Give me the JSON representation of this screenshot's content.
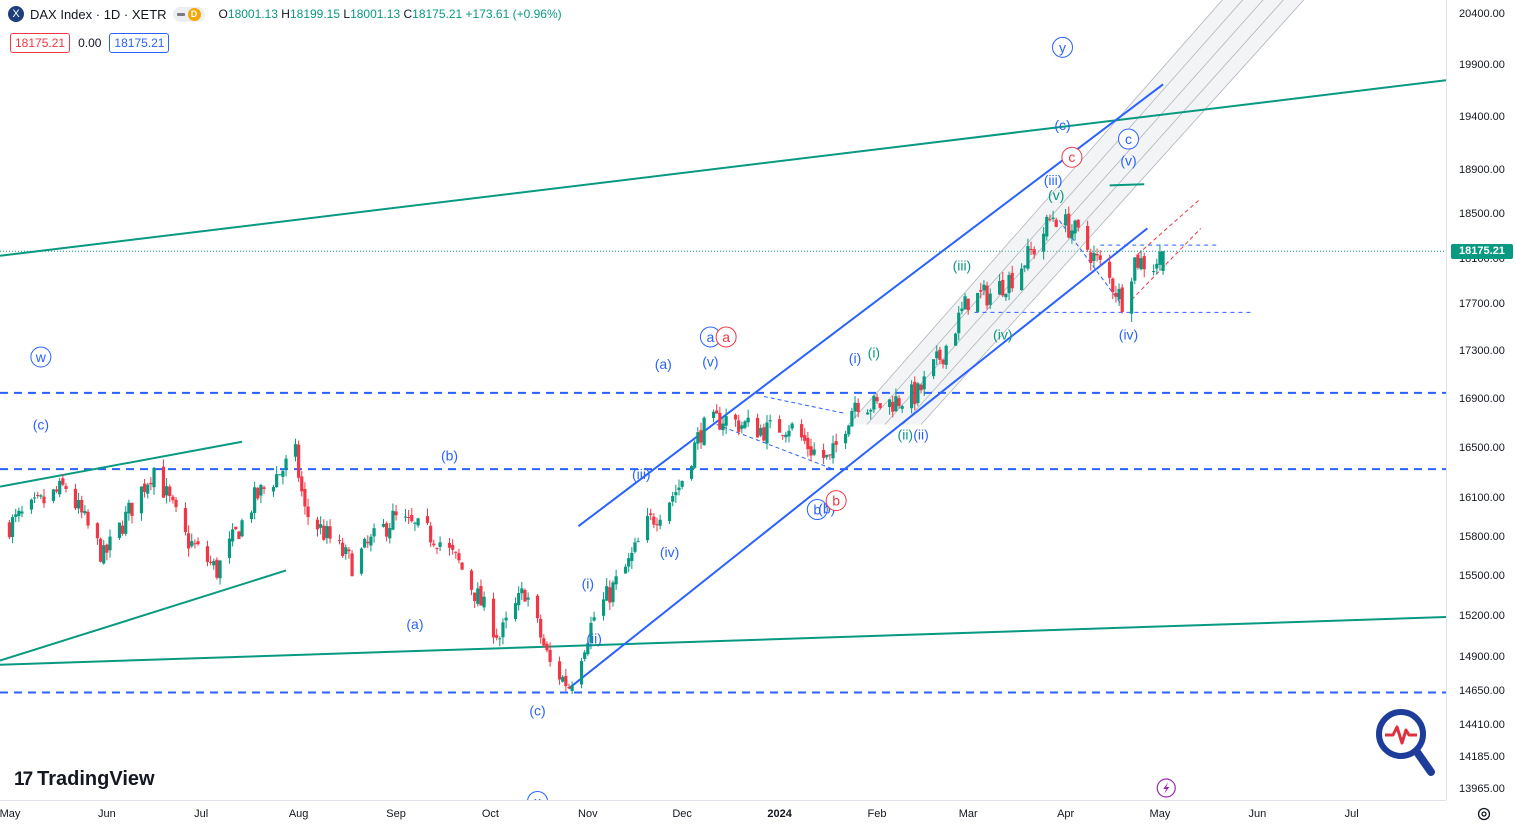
{
  "header": {
    "symbol_badge": "X",
    "title": "DAX Index · 1D · XETR",
    "interval_badge": "D",
    "ohlc": {
      "o_label": "O",
      "o": "18001.13",
      "h_label": "H",
      "h": "18199.15",
      "l_label": "L",
      "l": "18001.13",
      "c_label": "C",
      "c": "18175.21",
      "change": "+173.61 (+0.96%)"
    },
    "sell_price": "18175.21",
    "spread": "0.00",
    "buy_price": "18175.21"
  },
  "brand": {
    "logo_text": "TradingView",
    "logo_mark": "17"
  },
  "colors": {
    "up": "#089981",
    "down": "#f23645",
    "channel_blue": "#2962ff",
    "trend_green": "#089981",
    "label_blue": "#2962ff",
    "label_red": "#f23645"
  },
  "chart_data": {
    "type": "candlestick",
    "symbol": "DAX Index",
    "interval": "1D",
    "exchange": "XETR",
    "last_price": 18175.21,
    "last_price_label": "18175.21",
    "y_axis": {
      "scale": "log",
      "range": [
        13900,
        20550
      ],
      "ticks": [
        20400,
        19900,
        19400,
        18900,
        18500,
        18100,
        17700,
        17300,
        16900,
        16500,
        16100,
        15800,
        15500,
        15200,
        14900,
        14650,
        14410,
        14185,
        13965
      ],
      "tick_labels": [
        "20400.00",
        "19900.00",
        "19400.00",
        "18900.00",
        "18500.00",
        "18100.00",
        "17700.00",
        "17300.00",
        "16900.00",
        "16500.00",
        "16100.00",
        "15800.00",
        "15500.00",
        "15200.00",
        "14900.00",
        "14650.00",
        "14410.00",
        "14185.00",
        "13965.00"
      ]
    },
    "x_axis": {
      "type": "date",
      "range": [
        "2023-04-28",
        "2024-07-31"
      ],
      "ticks": [
        {
          "date": "2023-05-01",
          "label": "May",
          "bold": false
        },
        {
          "date": "2023-06-01",
          "label": "Jun",
          "bold": false
        },
        {
          "date": "2023-07-01",
          "label": "Jul",
          "bold": false
        },
        {
          "date": "2023-08-01",
          "label": "Aug",
          "bold": false
        },
        {
          "date": "2023-09-01",
          "label": "Sep",
          "bold": false
        },
        {
          "date": "2023-10-01",
          "label": "Oct",
          "bold": false
        },
        {
          "date": "2023-11-01",
          "label": "Nov",
          "bold": false
        },
        {
          "date": "2023-12-01",
          "label": "Dec",
          "bold": false
        },
        {
          "date": "2024-01-01",
          "label": "2024",
          "bold": true
        },
        {
          "date": "2024-02-01",
          "label": "Feb",
          "bold": false
        },
        {
          "date": "2024-03-01",
          "label": "Mar",
          "bold": false
        },
        {
          "date": "2024-04-01",
          "label": "Apr",
          "bold": false
        },
        {
          "date": "2024-05-01",
          "label": "May",
          "bold": false
        },
        {
          "date": "2024-06-01",
          "label": "Jun",
          "bold": false
        },
        {
          "date": "2024-07-01",
          "label": "Jul",
          "bold": false
        }
      ]
    },
    "price_path": [
      {
        "date": "2023-05-01",
        "close": 15900
      },
      {
        "date": "2023-05-19",
        "close": 16200
      },
      {
        "date": "2023-05-31",
        "close": 15650
      },
      {
        "date": "2023-06-16",
        "close": 16350
      },
      {
        "date": "2023-06-26",
        "close": 15800
      },
      {
        "date": "2023-07-06",
        "close": 15550
      },
      {
        "date": "2023-07-18",
        "close": 16100
      },
      {
        "date": "2023-07-31",
        "close": 16450
      },
      {
        "date": "2023-08-03",
        "close": 16000
      },
      {
        "date": "2023-08-18",
        "close": 15600
      },
      {
        "date": "2023-08-31",
        "close": 15950
      },
      {
        "date": "2023-09-14",
        "close": 15800
      },
      {
        "date": "2023-09-21",
        "close": 15600
      },
      {
        "date": "2023-10-04",
        "close": 15050
      },
      {
        "date": "2023-10-12",
        "close": 15400
      },
      {
        "date": "2023-10-20",
        "close": 14850
      },
      {
        "date": "2023-10-26",
        "close": 14700
      },
      {
        "date": "2023-11-03",
        "close": 15200
      },
      {
        "date": "2023-11-14",
        "close": 15600
      },
      {
        "date": "2023-11-20",
        "close": 15900
      },
      {
        "date": "2023-11-30",
        "close": 16200
      },
      {
        "date": "2023-12-07",
        "close": 16650
      },
      {
        "date": "2023-12-14",
        "close": 16750
      },
      {
        "date": "2023-12-20",
        "close": 16700
      },
      {
        "date": "2023-12-28",
        "close": 16650
      },
      {
        "date": "2024-01-04",
        "close": 16700
      },
      {
        "date": "2024-01-11",
        "close": 16500
      },
      {
        "date": "2024-01-17",
        "close": 16400
      },
      {
        "date": "2024-01-25",
        "close": 16900
      },
      {
        "date": "2024-02-01",
        "close": 16850
      },
      {
        "date": "2024-02-14",
        "close": 16950
      },
      {
        "date": "2024-02-22",
        "close": 17300
      },
      {
        "date": "2024-03-01",
        "close": 17750
      },
      {
        "date": "2024-03-08",
        "close": 17800
      },
      {
        "date": "2024-03-15",
        "close": 17950
      },
      {
        "date": "2024-03-22",
        "close": 18200
      },
      {
        "date": "2024-03-28",
        "close": 18500
      },
      {
        "date": "2024-04-04",
        "close": 18350
      },
      {
        "date": "2024-04-12",
        "close": 18050
      },
      {
        "date": "2024-04-19",
        "close": 17750
      },
      {
        "date": "2024-04-23",
        "close": 18100
      },
      {
        "date": "2024-04-29",
        "close": 18050
      },
      {
        "date": "2024-05-02",
        "close": 18175
      }
    ],
    "horizontal_levels": [
      {
        "price": 16340,
        "style": "dashed",
        "color": "#2962ff"
      },
      {
        "price": 16960,
        "style": "dashed",
        "color": "#2962ff"
      },
      {
        "price": 14650,
        "style": "dashed",
        "color": "#2962ff"
      },
      {
        "price": 17640,
        "style": "dashed",
        "color": "#2962ff",
        "from": "2024-03-03",
        "to": "2024-05-31"
      },
      {
        "price": 18230,
        "style": "dashed",
        "color": "#2962ff",
        "from": "2024-04-12",
        "to": "2024-05-20"
      }
    ],
    "trend_lines": [
      {
        "color": "#089981",
        "from": {
          "date": "2023-04-28",
          "price": 18135
        },
        "to": {
          "date": "2024-07-31",
          "price": 19760
        }
      },
      {
        "color": "#089981",
        "from": {
          "date": "2023-04-28",
          "price": 14850
        },
        "to": {
          "date": "2024-07-31",
          "price": 15200
        }
      },
      {
        "color": "#089981",
        "from": {
          "date": "2023-04-28",
          "price": 16200
        },
        "to": {
          "date": "2023-07-14",
          "price": 16560
        }
      },
      {
        "color": "#089981",
        "from": {
          "date": "2023-04-28",
          "price": 14880
        },
        "to": {
          "date": "2023-07-28",
          "price": 15550
        }
      },
      {
        "color": "#089981",
        "from": {
          "date": "2024-04-15",
          "price": 18770
        },
        "to": {
          "date": "2024-04-26",
          "price": 18780
        }
      },
      {
        "color": "#2962ff",
        "from": {
          "date": "2023-10-29",
          "price": 15890
        },
        "to": {
          "date": "2024-05-02",
          "price": 19720
        }
      },
      {
        "color": "#2962ff",
        "from": {
          "date": "2023-10-26",
          "price": 14680
        },
        "to": {
          "date": "2024-04-27",
          "price": 18380
        }
      }
    ],
    "wave_labels": [
      {
        "text": "w",
        "date": "2023-05-11",
        "price": 17260,
        "circle": true,
        "color": "#2962ff"
      },
      {
        "text": "(c)",
        "date": "2023-05-11",
        "price": 16700,
        "circle": false,
        "color": "#2962ff"
      },
      {
        "text": "(b)",
        "date": "2023-09-18",
        "price": 16450,
        "circle": false,
        "color": "#2962ff"
      },
      {
        "text": "(a)",
        "date": "2023-09-07",
        "price": 15150,
        "circle": false,
        "color": "#2962ff"
      },
      {
        "text": "(c)",
        "date": "2023-10-16",
        "price": 14520,
        "circle": false,
        "color": "#2962ff"
      },
      {
        "text": "x",
        "date": "2023-10-16",
        "price": 13890,
        "circle": true,
        "color": "#2962ff"
      },
      {
        "text": "(i)",
        "date": "2023-11-01",
        "price": 15450,
        "circle": false,
        "color": "#2962ff"
      },
      {
        "text": "(ii)",
        "date": "2023-11-03",
        "price": 15040,
        "circle": false,
        "color": "#2962ff"
      },
      {
        "text": "(iii)",
        "date": "2023-11-18",
        "price": 16300,
        "circle": false,
        "color": "#2962ff"
      },
      {
        "text": "(iv)",
        "date": "2023-11-27",
        "price": 15690,
        "circle": false,
        "color": "#2962ff"
      },
      {
        "text": "(a)",
        "date": "2023-11-25",
        "price": 17200,
        "circle": false,
        "color": "#2962ff"
      },
      {
        "text": "a",
        "date": "2023-12-10",
        "price": 17430,
        "circle": true,
        "color": "#2962ff"
      },
      {
        "text": "a",
        "date": "2023-12-15",
        "price": 17430,
        "circle": true,
        "color": "#f23645"
      },
      {
        "text": "(v)",
        "date": "2023-12-10",
        "price": 17220,
        "circle": false,
        "color": "#2962ff"
      },
      {
        "text": "b",
        "date": "2024-01-13",
        "price": 16020,
        "circle": true,
        "color": "#2962ff"
      },
      {
        "text": "(b)",
        "date": "2024-01-16",
        "price": 16030,
        "circle": false,
        "color": "#2962ff"
      },
      {
        "text": "b",
        "date": "2024-01-19",
        "price": 16090,
        "circle": true,
        "color": "#f23645"
      },
      {
        "text": "(i)",
        "date": "2024-01-25",
        "price": 17250,
        "circle": false,
        "color": "#2962ff"
      },
      {
        "text": "(i)",
        "date": "2024-01-31",
        "price": 17300,
        "circle": false,
        "color": "#089981"
      },
      {
        "text": "(ii)",
        "date": "2024-02-10",
        "price": 16620,
        "circle": false,
        "color": "#089981"
      },
      {
        "text": "(ii)",
        "date": "2024-02-15",
        "price": 16620,
        "circle": false,
        "color": "#2962ff"
      },
      {
        "text": "(iii)",
        "date": "2024-02-28",
        "price": 18050,
        "circle": false,
        "color": "#089981"
      },
      {
        "text": "(iv)",
        "date": "2024-03-12",
        "price": 17450,
        "circle": false,
        "color": "#089981"
      },
      {
        "text": "(v)",
        "date": "2024-03-29",
        "price": 18680,
        "circle": false,
        "color": "#089981"
      },
      {
        "text": "(iii)",
        "date": "2024-03-28",
        "price": 18820,
        "circle": false,
        "color": "#2962ff"
      },
      {
        "text": "c",
        "date": "2024-04-03",
        "price": 19030,
        "circle": true,
        "color": "#f23645"
      },
      {
        "text": "(c)",
        "date": "2024-03-31",
        "price": 19330,
        "circle": false,
        "color": "#2962ff"
      },
      {
        "text": "y",
        "date": "2024-03-31",
        "price": 20080,
        "circle": true,
        "color": "#2962ff"
      },
      {
        "text": "c",
        "date": "2024-04-21",
        "price": 19200,
        "circle": true,
        "color": "#2962ff"
      },
      {
        "text": "(v)",
        "date": "2024-04-21",
        "price": 19000,
        "circle": false,
        "color": "#2962ff"
      },
      {
        "text": "(iv)",
        "date": "2024-04-21",
        "price": 17450,
        "circle": false,
        "color": "#2962ff"
      }
    ]
  }
}
